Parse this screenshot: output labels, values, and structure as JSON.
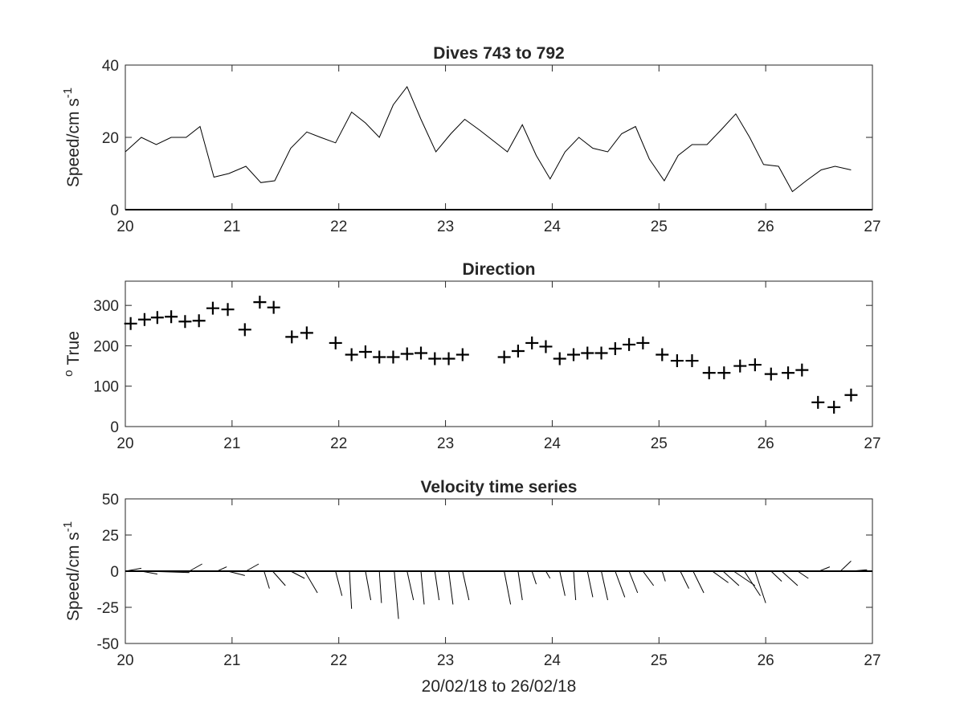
{
  "chart_data": [
    {
      "type": "line",
      "title": "Dives 743 to 792",
      "ylabel_main": "Speed/cm s",
      "ylabel_sup": "-1",
      "xlabel": "",
      "xlim": [
        20,
        27
      ],
      "ylim": [
        0,
        40
      ],
      "xticks": [
        20,
        21,
        22,
        23,
        24,
        25,
        26,
        27
      ],
      "yticks": [
        0,
        20,
        40
      ],
      "x": [
        20.0,
        20.15,
        20.29,
        20.43,
        20.57,
        20.7,
        20.83,
        20.97,
        21.13,
        21.27,
        21.4,
        21.55,
        21.7,
        21.83,
        21.97,
        22.12,
        22.25,
        22.38,
        22.51,
        22.64,
        22.77,
        22.91,
        23.05,
        23.18,
        23.32,
        23.45,
        23.58,
        23.72,
        23.85,
        23.98,
        24.12,
        24.25,
        24.38,
        24.52,
        24.65,
        24.78,
        24.91,
        25.05,
        25.18,
        25.31,
        25.45,
        25.58,
        25.72,
        25.85,
        25.98,
        26.12,
        26.25,
        26.38,
        26.52,
        26.65,
        26.8
      ],
      "values": [
        16,
        20,
        18,
        20,
        20,
        23,
        9,
        10,
        12,
        7.5,
        8,
        17,
        21.5,
        20,
        18.5,
        27,
        24,
        20,
        29,
        34,
        25,
        16,
        21,
        25,
        22,
        19,
        16,
        23.5,
        15,
        8.5,
        16,
        20,
        17,
        16,
        21,
        23,
        14,
        8,
        15,
        18,
        18,
        22,
        26.5,
        20,
        12.5,
        12,
        5,
        8,
        11,
        12,
        11
      ]
    },
    {
      "type": "scatter",
      "title": "Direction",
      "ylabel_main": "True",
      "ylabel_sup": "o",
      "xlabel": "",
      "xlim": [
        20,
        27
      ],
      "ylim": [
        0,
        360
      ],
      "xticks": [
        20,
        21,
        22,
        23,
        24,
        25,
        26,
        27
      ],
      "yticks": [
        0,
        100,
        200,
        300
      ],
      "marker": "plus",
      "x": [
        20.05,
        20.18,
        20.3,
        20.43,
        20.56,
        20.69,
        20.82,
        20.96,
        21.12,
        21.26,
        21.39,
        21.56,
        21.7,
        21.97,
        22.12,
        22.25,
        22.38,
        22.51,
        22.64,
        22.77,
        22.9,
        23.03,
        23.16,
        23.55,
        23.68,
        23.81,
        23.94,
        24.07,
        24.2,
        24.33,
        24.46,
        24.59,
        24.72,
        24.85,
        25.03,
        25.17,
        25.31,
        25.47,
        25.61,
        25.76,
        25.9,
        26.05,
        26.21,
        26.34,
        26.49,
        26.64,
        26.8
      ],
      "values": [
        255,
        265,
        270,
        272,
        260,
        262,
        293,
        290,
        240,
        308,
        295,
        222,
        232,
        207,
        178,
        185,
        172,
        172,
        180,
        182,
        168,
        168,
        178,
        172,
        187,
        207,
        198,
        168,
        178,
        182,
        182,
        193,
        203,
        207,
        178,
        163,
        163,
        133,
        133,
        150,
        153,
        130,
        133,
        140,
        60,
        48,
        78
      ]
    },
    {
      "type": "line",
      "subtype": "stick_vectors",
      "title": "Velocity time series",
      "ylabel_main": "Speed/cm s",
      "ylabel_sup": "-1",
      "xlabel": "20/02/18 to 26/02/18",
      "xlim": [
        20,
        27
      ],
      "ylim": [
        -50,
        50
      ],
      "xticks": [
        20,
        21,
        22,
        23,
        24,
        25,
        26,
        27
      ],
      "yticks": [
        -50,
        -25,
        0,
        25,
        50
      ],
      "vectors": [
        {
          "x0": 20.0,
          "x1": 20.15,
          "y": 2
        },
        {
          "x0": 20.08,
          "x1": 20.4,
          "y": 0
        },
        {
          "x0": 20.15,
          "x1": 20.3,
          "y": -2
        },
        {
          "x0": 20.2,
          "x1": 20.6,
          "y": -1
        },
        {
          "x0": 20.3,
          "x1": 20.6,
          "y": -0.5
        },
        {
          "x0": 20.6,
          "x1": 20.72,
          "y": 5
        },
        {
          "x0": 20.86,
          "x1": 20.95,
          "y": 3
        },
        {
          "x0": 20.96,
          "x1": 21.12,
          "y": -3
        },
        {
          "x0": 21.13,
          "x1": 21.25,
          "y": 5
        },
        {
          "x0": 21.3,
          "x1": 21.35,
          "y": -12
        },
        {
          "x0": 21.38,
          "x1": 21.5,
          "y": -10
        },
        {
          "x0": 21.55,
          "x1": 21.68,
          "y": -5
        },
        {
          "x0": 21.68,
          "x1": 21.8,
          "y": -15
        },
        {
          "x0": 21.97,
          "x1": 22.03,
          "y": -17
        },
        {
          "x0": 22.1,
          "x1": 22.12,
          "y": -26
        },
        {
          "x0": 22.25,
          "x1": 22.3,
          "y": -20
        },
        {
          "x0": 22.38,
          "x1": 22.4,
          "y": -22
        },
        {
          "x0": 22.52,
          "x1": 22.56,
          "y": -33
        },
        {
          "x0": 22.64,
          "x1": 22.7,
          "y": -20
        },
        {
          "x0": 22.77,
          "x1": 22.8,
          "y": -23
        },
        {
          "x0": 22.9,
          "x1": 22.94,
          "y": -20
        },
        {
          "x0": 23.03,
          "x1": 23.07,
          "y": -23
        },
        {
          "x0": 23.16,
          "x1": 23.22,
          "y": -20
        },
        {
          "x0": 23.55,
          "x1": 23.61,
          "y": -23
        },
        {
          "x0": 23.68,
          "x1": 23.72,
          "y": -20
        },
        {
          "x0": 23.81,
          "x1": 23.85,
          "y": -9
        },
        {
          "x0": 23.94,
          "x1": 23.98,
          "y": -5
        },
        {
          "x0": 24.07,
          "x1": 24.12,
          "y": -17
        },
        {
          "x0": 24.2,
          "x1": 24.22,
          "y": -20
        },
        {
          "x0": 24.33,
          "x1": 24.38,
          "y": -18
        },
        {
          "x0": 24.46,
          "x1": 24.52,
          "y": -20
        },
        {
          "x0": 24.59,
          "x1": 24.68,
          "y": -18
        },
        {
          "x0": 24.72,
          "x1": 24.8,
          "y": -15
        },
        {
          "x0": 24.85,
          "x1": 24.95,
          "y": -10
        },
        {
          "x0": 25.03,
          "x1": 25.06,
          "y": -7
        },
        {
          "x0": 25.2,
          "x1": 25.28,
          "y": -12
        },
        {
          "x0": 25.32,
          "x1": 25.42,
          "y": -15
        },
        {
          "x0": 25.5,
          "x1": 25.65,
          "y": -8
        },
        {
          "x0": 25.6,
          "x1": 25.75,
          "y": -10
        },
        {
          "x0": 25.7,
          "x1": 25.9,
          "y": -10
        },
        {
          "x0": 25.8,
          "x1": 25.95,
          "y": -17
        },
        {
          "x0": 25.9,
          "x1": 26.0,
          "y": -22
        },
        {
          "x0": 26.05,
          "x1": 26.15,
          "y": -7
        },
        {
          "x0": 26.15,
          "x1": 26.3,
          "y": -10
        },
        {
          "x0": 26.3,
          "x1": 26.4,
          "y": -5
        },
        {
          "x0": 26.5,
          "x1": 26.6,
          "y": 3
        },
        {
          "x0": 26.7,
          "x1": 26.8,
          "y": 7
        },
        {
          "x0": 26.8,
          "x1": 26.95,
          "y": 1
        }
      ]
    }
  ]
}
